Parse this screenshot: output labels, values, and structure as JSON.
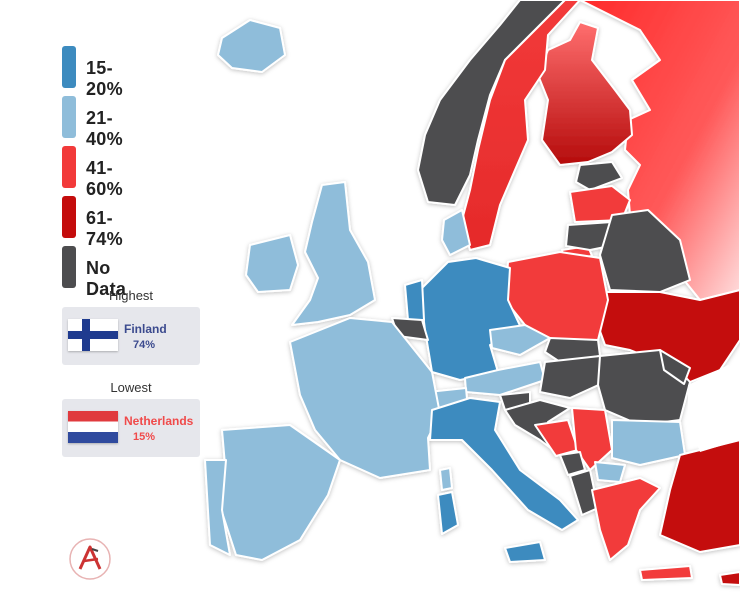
{
  "legend": {
    "items": [
      {
        "label": "15-20%",
        "color": "#3d8bbf"
      },
      {
        "label": "21-40%",
        "color": "#8fbdda"
      },
      {
        "label": "41-60%",
        "color": "#f23a3a"
      },
      {
        "label": "61-74%",
        "color": "#c40c0c"
      },
      {
        "label": "No Data",
        "color": "#4d4d4f"
      }
    ]
  },
  "highest": {
    "title": "Highest",
    "country": "Finland",
    "value": "74%",
    "text_color": "#3b4a8e"
  },
  "lowest": {
    "title": "Lowest",
    "country": "Netherlands",
    "value": "15%",
    "text_color": "#f04a4a"
  },
  "logo_icon": "letter-a-logo"
}
